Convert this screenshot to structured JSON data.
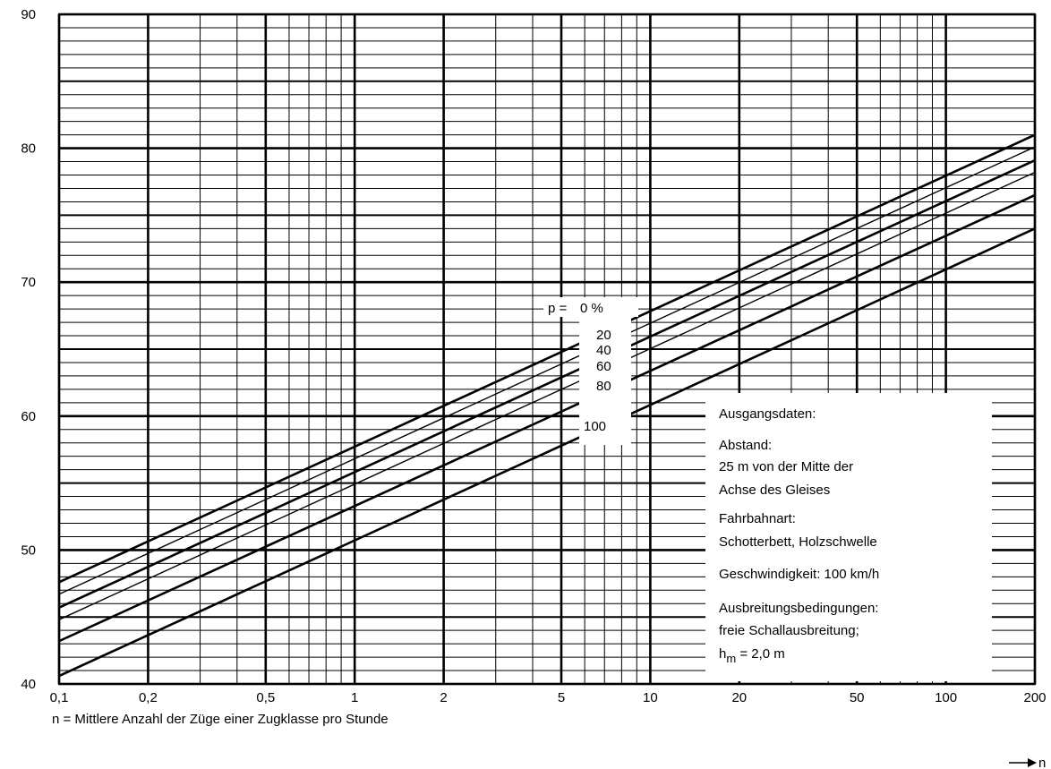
{
  "chart_data": {
    "type": "line",
    "x_scale": "log",
    "xlim": [
      0.1,
      200
    ],
    "ylim": [
      40,
      90
    ],
    "x_ticks": [
      "0,1",
      "0,2",
      "0,5",
      "1",
      "2",
      "5",
      "10",
      "20",
      "50",
      "100",
      "200"
    ],
    "y_ticks": [
      "40",
      "50",
      "60",
      "70",
      "80",
      "90"
    ],
    "xlabel": "n = Mittlere Anzahl der Züge einer Zugklasse pro Stunde",
    "xaxis_arrow_label": "n",
    "grid": true,
    "p_label_prefix": "p =",
    "series": [
      {
        "name": "0 %",
        "x": [
          0.1,
          200
        ],
        "y": [
          47.6,
          81.0
        ]
      },
      {
        "name": "20",
        "x": [
          0.1,
          200
        ],
        "y": [
          46.7,
          80.1
        ]
      },
      {
        "name": "40",
        "x": [
          0.1,
          200
        ],
        "y": [
          45.7,
          79.1
        ]
      },
      {
        "name": "60",
        "x": [
          0.1,
          200
        ],
        "y": [
          44.8,
          78.2
        ]
      },
      {
        "name": "80",
        "x": [
          0.1,
          200
        ],
        "y": [
          43.2,
          76.5
        ]
      },
      {
        "name": "100",
        "x": [
          0.1,
          200
        ],
        "y": [
          40.6,
          74.0
        ]
      }
    ],
    "annotation": {
      "lines": [
        "Ausgangsdaten:",
        "Abstand:",
        "25 m von der Mitte der",
        "Achse des Gleises",
        "Fahrbahnart:",
        "Schotterbett, Holzschwelle",
        "Geschwindigkeit: 100 km/h",
        "Ausbreitungsbedingungen:",
        "freie Schallausbreitung;"
      ],
      "hm_base": "h",
      "hm_sub": "m",
      "hm_value": " = 2,0 m"
    }
  }
}
